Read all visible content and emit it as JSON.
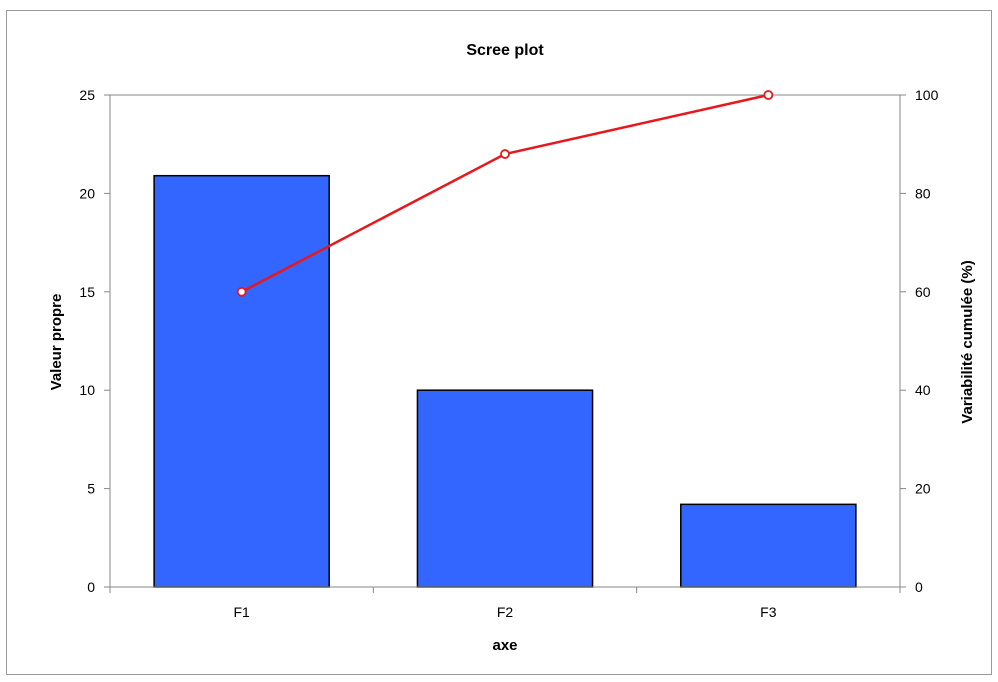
{
  "chart_data": {
    "type": "bar",
    "title": "Scree plot",
    "xlabel": "axe",
    "ylabel": "Valeur propre",
    "y2label": "Variabilité cumulée (%)",
    "categories": [
      "F1",
      "F2",
      "F3"
    ],
    "series": [
      {
        "name": "Valeur propre",
        "type": "bar",
        "axis": "left",
        "values": [
          20.9,
          10.0,
          4.2
        ],
        "color": "#3366FF"
      },
      {
        "name": "Variabilité cumulée (%)",
        "type": "line",
        "axis": "right",
        "values": [
          60,
          88,
          100
        ],
        "color": "#E8171C"
      }
    ],
    "ylim": [
      0,
      25
    ],
    "yticks": [
      0,
      5,
      10,
      15,
      20,
      25
    ],
    "y2lim": [
      0,
      100
    ],
    "y2ticks": [
      0,
      20,
      40,
      60,
      80,
      100
    ],
    "grid": false,
    "legend": "none"
  }
}
